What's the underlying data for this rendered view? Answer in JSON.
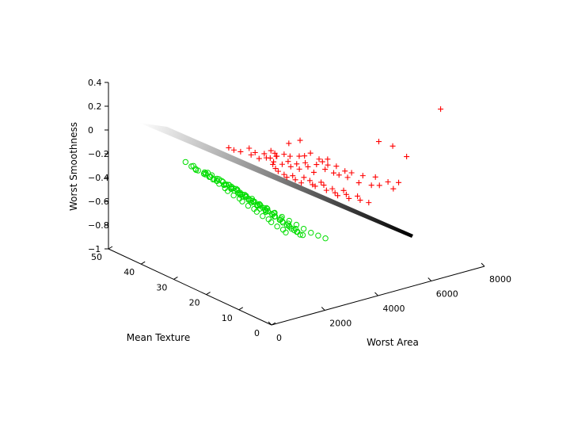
{
  "chart_data": {
    "type": "scatter",
    "projection": "3d",
    "title": "",
    "xlabel": "Worst Area",
    "ylabel": "Mean Texture",
    "zlabel": "Worst Smoothness",
    "xlim": [
      0,
      8000
    ],
    "ylim": [
      0,
      50
    ],
    "zlim": [
      -1,
      0.4
    ],
    "xticks": [
      "0",
      "2000",
      "4000",
      "6000",
      "8000"
    ],
    "yticks": [
      "0",
      "10",
      "20",
      "30",
      "40",
      "50"
    ],
    "zticks": [
      "-1",
      "-0.8",
      "-0.6",
      "-0.4",
      "-0.2",
      "0",
      "0.2",
      "0.4"
    ],
    "grid": false,
    "legend": "none",
    "surface": {
      "type": "separating-plane",
      "colormap": "gray",
      "from_color": "#ffffff",
      "to_color": "#000000"
    },
    "series": [
      {
        "marker": "+",
        "color": "#ff0000",
        "points": [
          [
            1650,
            25,
            0.05
          ],
          [
            1700,
            27,
            0.04
          ],
          [
            1900,
            25,
            0.02
          ],
          [
            2050,
            23,
            0.01
          ],
          [
            2100,
            24,
            0.05
          ],
          [
            2200,
            23,
            0.02
          ],
          [
            2300,
            21,
            0.03
          ],
          [
            2400,
            20,
            0.0
          ],
          [
            2450,
            19,
            0.05
          ],
          [
            2550,
            21,
            0.04
          ],
          [
            2650,
            20,
            0.0
          ],
          [
            2800,
            19,
            0.02
          ],
          [
            2900,
            18,
            0.01
          ],
          [
            3000,
            16,
            0.03
          ],
          [
            3200,
            16,
            0.02
          ],
          [
            3300,
            15,
            0.05
          ],
          [
            3500,
            14,
            0.0
          ],
          [
            3700,
            13,
            0.0
          ],
          [
            2350,
            23,
            -0.04
          ],
          [
            2500,
            22,
            -0.03
          ],
          [
            2650,
            21,
            -0.06
          ],
          [
            2750,
            21,
            -0.02
          ],
          [
            2850,
            20,
            -0.08
          ],
          [
            2950,
            19,
            -0.05
          ],
          [
            3050,
            19,
            -0.1
          ],
          [
            3150,
            18,
            -0.07
          ],
          [
            3250,
            18,
            -0.12
          ],
          [
            3350,
            17,
            -0.06
          ],
          [
            3450,
            17,
            -0.1
          ],
          [
            3550,
            16,
            -0.14
          ],
          [
            2500,
            20,
            -0.06
          ],
          [
            2600,
            20,
            -0.1
          ],
          [
            2700,
            20,
            -0.13
          ],
          [
            2800,
            19,
            -0.15
          ],
          [
            2900,
            19,
            -0.18
          ],
          [
            3000,
            18,
            -0.16
          ],
          [
            3100,
            18,
            -0.2
          ],
          [
            3200,
            17,
            -0.22
          ],
          [
            3300,
            17,
            -0.18
          ],
          [
            3400,
            16,
            -0.2
          ],
          [
            3500,
            16,
            -0.24
          ],
          [
            3600,
            16,
            -0.26
          ],
          [
            3700,
            15,
            -0.22
          ],
          [
            3800,
            15,
            -0.25
          ],
          [
            3900,
            15,
            -0.3
          ],
          [
            4000,
            14,
            -0.28
          ],
          [
            4100,
            14,
            -0.32
          ],
          [
            4200,
            14,
            -0.35
          ],
          [
            4300,
            13,
            -0.3
          ],
          [
            4400,
            13,
            -0.34
          ],
          [
            4500,
            13,
            -0.38
          ],
          [
            4700,
            12,
            -0.36
          ],
          [
            4800,
            12,
            -0.4
          ],
          [
            5000,
            11,
            -0.42
          ],
          [
            3650,
            16,
            -0.08
          ],
          [
            3750,
            15,
            -0.05
          ],
          [
            3850,
            15,
            -0.12
          ],
          [
            3950,
            15,
            -0.09
          ],
          [
            4050,
            14,
            -0.15
          ],
          [
            4150,
            14,
            -0.1
          ],
          [
            4250,
            14,
            -0.18
          ],
          [
            4350,
            13,
            -0.14
          ],
          [
            4450,
            13,
            -0.2
          ],
          [
            4600,
            13,
            -0.17
          ],
          [
            4750,
            12,
            -0.25
          ],
          [
            4900,
            12,
            -0.2
          ],
          [
            5100,
            11,
            -0.28
          ],
          [
            5250,
            11,
            -0.22
          ],
          [
            5400,
            11,
            -0.3
          ],
          [
            5600,
            10,
            -0.27
          ],
          [
            5800,
            10,
            -0.34
          ],
          [
            6000,
            10,
            -0.3
          ],
          [
            5500,
            12,
            0.05
          ],
          [
            5900,
            11,
            0.0
          ],
          [
            6300,
            10,
            -0.1
          ],
          [
            7700,
            11,
            0.2
          ],
          [
            3100,
            20,
            0.08
          ],
          [
            3400,
            19,
            0.1
          ]
        ]
      },
      {
        "marker": "o",
        "color": "#00dd00",
        "points": [
          [
            300,
            22,
            -0.02
          ],
          [
            350,
            23,
            -0.04
          ],
          [
            400,
            24,
            -0.06
          ],
          [
            450,
            22,
            -0.05
          ],
          [
            500,
            23,
            -0.08
          ],
          [
            550,
            22,
            -0.09
          ],
          [
            600,
            21,
            -0.08
          ],
          [
            650,
            22,
            -0.11
          ],
          [
            700,
            21,
            -0.1
          ],
          [
            750,
            20,
            -0.12
          ],
          [
            800,
            21,
            -0.14
          ],
          [
            850,
            20,
            -0.13
          ],
          [
            900,
            19,
            -0.15
          ],
          [
            950,
            20,
            -0.17
          ],
          [
            1000,
            19,
            -0.16
          ],
          [
            1050,
            19,
            -0.18
          ],
          [
            1100,
            18,
            -0.2
          ],
          [
            1150,
            19,
            -0.22
          ],
          [
            1200,
            18,
            -0.21
          ],
          [
            1250,
            18,
            -0.23
          ],
          [
            1300,
            17,
            -0.25
          ],
          [
            1350,
            17,
            -0.24
          ],
          [
            1400,
            17,
            -0.27
          ],
          [
            1450,
            16,
            -0.29
          ],
          [
            1500,
            16,
            -0.28
          ],
          [
            1550,
            16,
            -0.3
          ],
          [
            1600,
            15,
            -0.32
          ],
          [
            1650,
            15,
            -0.31
          ],
          [
            1700,
            15,
            -0.34
          ],
          [
            1750,
            14,
            -0.36
          ],
          [
            1800,
            14,
            -0.35
          ],
          [
            1850,
            14,
            -0.38
          ],
          [
            1900,
            13,
            -0.4
          ],
          [
            1950,
            13,
            -0.39
          ],
          [
            2000,
            13,
            -0.42
          ],
          [
            2050,
            12,
            -0.44
          ],
          [
            2100,
            12,
            -0.43
          ],
          [
            2150,
            12,
            -0.46
          ],
          [
            2200,
            11,
            -0.48
          ],
          [
            2250,
            11,
            -0.47
          ],
          [
            2300,
            11,
            -0.5
          ],
          [
            2400,
            10,
            -0.52
          ],
          [
            550,
            25,
            -0.07
          ],
          [
            650,
            24,
            -0.1
          ],
          [
            750,
            24,
            -0.13
          ],
          [
            850,
            23,
            -0.16
          ],
          [
            950,
            22,
            -0.19
          ],
          [
            1050,
            22,
            -0.22
          ],
          [
            1150,
            21,
            -0.25
          ],
          [
            1250,
            20,
            -0.27
          ],
          [
            1350,
            20,
            -0.3
          ],
          [
            1450,
            19,
            -0.33
          ],
          [
            1550,
            18,
            -0.35
          ],
          [
            1650,
            18,
            -0.38
          ],
          [
            1750,
            17,
            -0.41
          ],
          [
            1850,
            16,
            -0.43
          ],
          [
            1950,
            16,
            -0.46
          ],
          [
            2050,
            15,
            -0.49
          ],
          [
            2150,
            14,
            -0.51
          ],
          [
            2250,
            14,
            -0.54
          ],
          [
            600,
            18,
            -0.09
          ],
          [
            700,
            18,
            -0.11
          ],
          [
            800,
            17,
            -0.13
          ],
          [
            900,
            17,
            -0.16
          ],
          [
            1000,
            16,
            -0.18
          ],
          [
            1100,
            16,
            -0.21
          ],
          [
            1200,
            15,
            -0.23
          ],
          [
            1300,
            15,
            -0.26
          ],
          [
            1400,
            14,
            -0.28
          ],
          [
            1500,
            14,
            -0.31
          ],
          [
            1600,
            13,
            -0.33
          ],
          [
            1700,
            13,
            -0.36
          ],
          [
            1800,
            12,
            -0.38
          ],
          [
            1900,
            12,
            -0.41
          ],
          [
            2000,
            11,
            -0.43
          ],
          [
            2100,
            11,
            -0.46
          ],
          [
            2200,
            10,
            -0.48
          ],
          [
            2300,
            10,
            -0.51
          ],
          [
            400,
            20,
            -0.05
          ],
          [
            500,
            19,
            -0.07
          ],
          [
            600,
            19,
            -0.1
          ],
          [
            700,
            18,
            -0.12
          ],
          [
            800,
            18,
            -0.15
          ],
          [
            900,
            17,
            -0.17
          ],
          [
            1000,
            17,
            -0.2
          ],
          [
            1100,
            16,
            -0.22
          ],
          [
            1200,
            16,
            -0.25
          ],
          [
            1300,
            15,
            -0.27
          ],
          [
            1400,
            15,
            -0.3
          ],
          [
            1500,
            14,
            -0.32
          ],
          [
            250,
            26,
            -0.01
          ],
          [
            300,
            27,
            -0.03
          ],
          [
            350,
            26,
            -0.05
          ],
          [
            200,
            28,
            0.0
          ],
          [
            450,
            27,
            -0.06
          ],
          [
            550,
            27,
            -0.08
          ],
          [
            700,
            26,
            -0.11
          ],
          [
            850,
            26,
            -0.14
          ],
          [
            1000,
            25,
            -0.17
          ],
          [
            1150,
            24,
            -0.2
          ],
          [
            1300,
            23,
            -0.23
          ],
          [
            1450,
            22,
            -0.26
          ],
          [
            1600,
            21,
            -0.29
          ],
          [
            1750,
            20,
            -0.32
          ],
          [
            1900,
            19,
            -0.35
          ],
          [
            2050,
            18,
            -0.38
          ],
          [
            2200,
            17,
            -0.41
          ],
          [
            2350,
            16,
            -0.44
          ],
          [
            2500,
            15,
            -0.47
          ],
          [
            2650,
            14,
            -0.5
          ],
          [
            2800,
            13,
            -0.53
          ],
          [
            2950,
            12,
            -0.56
          ],
          [
            3100,
            11,
            -0.58
          ],
          [
            3250,
            10,
            -0.6
          ]
        ]
      }
    ]
  }
}
